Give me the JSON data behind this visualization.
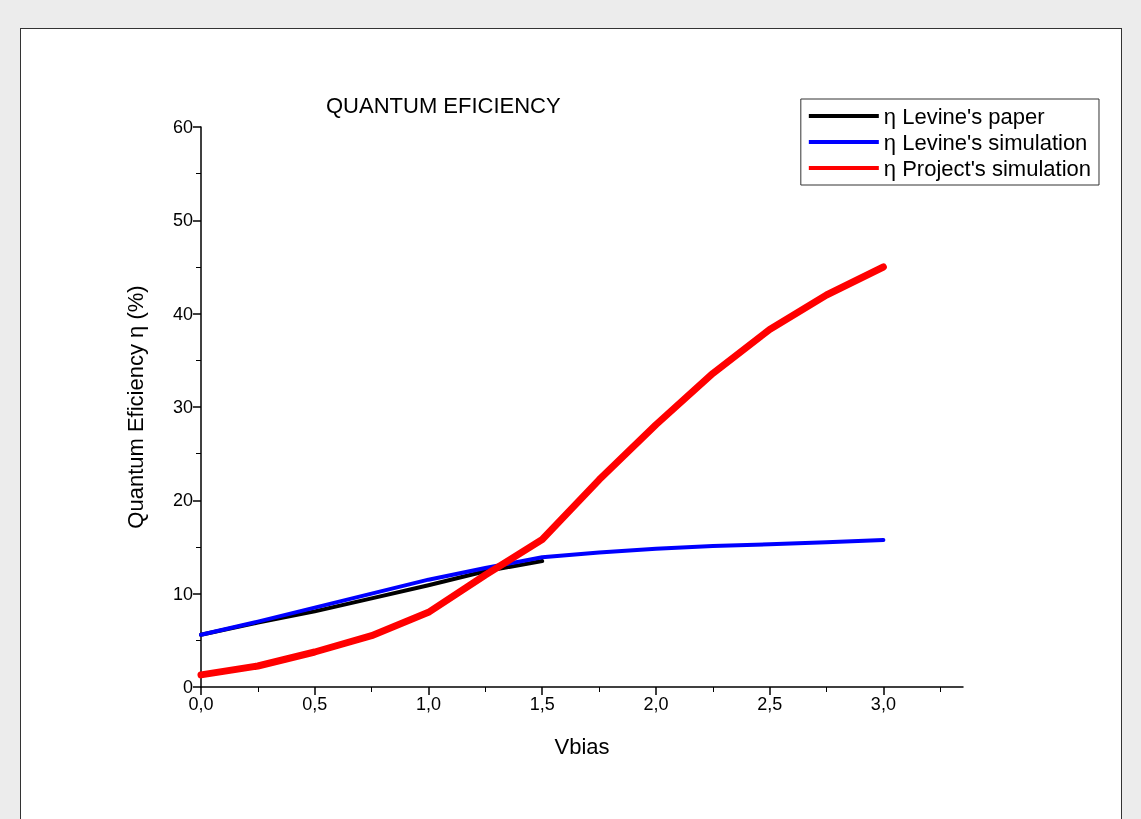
{
  "chart_data": {
    "type": "line",
    "title": "QUANTUM EFICIENCY",
    "xlabel": "Vbias",
    "ylabel": "Quantum Eficiency η (%)",
    "xlim": [
      0,
      3.35
    ],
    "ylim": [
      0,
      60
    ],
    "xticks": [
      {
        "value": 0,
        "label": "0,0"
      },
      {
        "value": 0.5,
        "label": "0,5"
      },
      {
        "value": 1,
        "label": "1,0"
      },
      {
        "value": 1.5,
        "label": "1,5"
      },
      {
        "value": 2,
        "label": "2,0"
      },
      {
        "value": 2.5,
        "label": "2,5"
      },
      {
        "value": 3,
        "label": "3,0"
      }
    ],
    "yticks": [
      0,
      10,
      20,
      30,
      40,
      50,
      60
    ],
    "grid": false,
    "legend": "top right",
    "marker": "none",
    "series": [
      {
        "name": "η Levine's paper",
        "color": "#000000",
        "x": [
          0,
          0.25,
          0.5,
          0.75,
          1.0,
          1.25,
          1.5
        ],
        "values": [
          5.6,
          6.9,
          8.1,
          9.5,
          10.9,
          12.4,
          13.5
        ]
      },
      {
        "name": "η Levine's simulation",
        "color": "#0000ff",
        "x": [
          0,
          0.25,
          0.5,
          0.75,
          1.0,
          1.25,
          1.5,
          1.75,
          2.0,
          2.25,
          2.5,
          2.75,
          3.0
        ],
        "values": [
          5.6,
          7.0,
          8.5,
          10.0,
          11.5,
          12.75,
          13.9,
          14.4,
          14.8,
          15.1,
          15.3,
          15.5,
          15.75
        ]
      },
      {
        "name": "η Project's simulation",
        "color": "#ff0000",
        "x": [
          0,
          0.25,
          0.5,
          0.75,
          1.0,
          1.25,
          1.5,
          1.75,
          2.0,
          2.25,
          2.5,
          2.75,
          3.0
        ],
        "values": [
          1.3,
          2.25,
          3.75,
          5.5,
          8.0,
          12.0,
          15.8,
          22.2,
          28.1,
          33.6,
          38.3,
          42.0,
          45.0
        ]
      }
    ]
  }
}
